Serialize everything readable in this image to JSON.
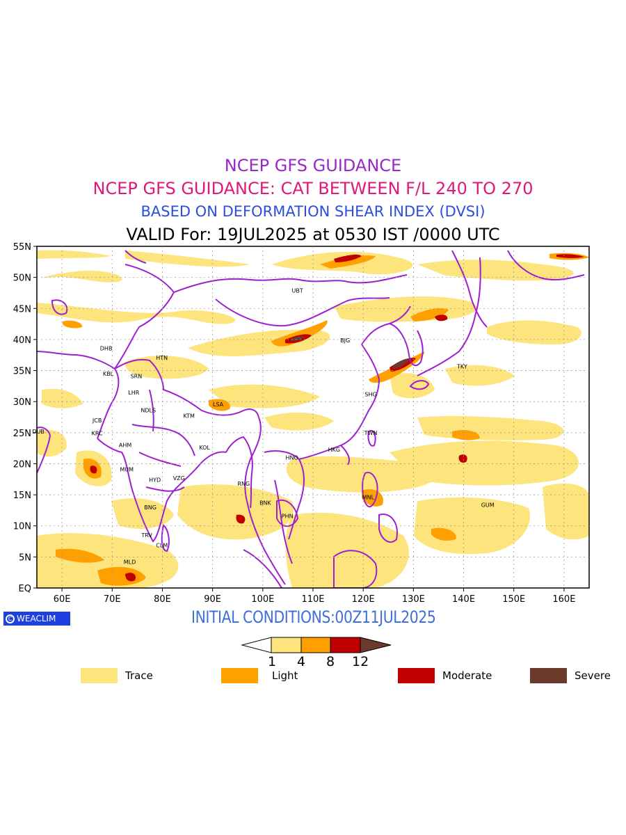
{
  "titles": {
    "line1": "NCEP GFS GUIDANCE",
    "line2": "NCEP GFS GUIDANCE: CAT BETWEEN F/L 240 TO 270",
    "line3": "BASED ON DEFORMATION SHEAR INDEX (DVSI)",
    "line4": "VALID For: 19JUL2025 at 0530 IST /0000 UTC"
  },
  "colors": {
    "line1": "#9a28c8",
    "line2": "#e0187a",
    "line3": "#2c4de0",
    "boundary": "#9e1fd0",
    "trace": "#fde47d",
    "light": "#ffa000",
    "moderate": "#c00000",
    "severe": "#6b3a2a"
  },
  "axes": {
    "lat_ticks": [
      "55N",
      "50N",
      "45N",
      "40N",
      "35N",
      "30N",
      "25N",
      "20N",
      "15N",
      "10N",
      "5N",
      "EQ"
    ],
    "lon_ticks": [
      "60E",
      "70E",
      "80E",
      "90E",
      "100E",
      "110E",
      "120E",
      "130E",
      "140E",
      "150E",
      "160E"
    ]
  },
  "stations": [
    {
      "code": "UBT",
      "lon": 106.9,
      "lat": 47.9
    },
    {
      "code": "BJG",
      "lon": 116.4,
      "lat": 39.9
    },
    {
      "code": "TKY",
      "lon": 139.7,
      "lat": 35.7
    },
    {
      "code": "SHG",
      "lon": 121.5,
      "lat": 31.2
    },
    {
      "code": "TWN",
      "lon": 121.5,
      "lat": 25.0
    },
    {
      "code": "HKG",
      "lon": 114.2,
      "lat": 22.3
    },
    {
      "code": "HNO",
      "lon": 105.8,
      "lat": 21.0
    },
    {
      "code": "MNL",
      "lon": 121.0,
      "lat": 14.6
    },
    {
      "code": "GUM",
      "lon": 144.8,
      "lat": 13.4
    },
    {
      "code": "BNK",
      "lon": 100.5,
      "lat": 13.7
    },
    {
      "code": "PHN",
      "lon": 104.9,
      "lat": 11.6
    },
    {
      "code": "RNG",
      "lon": 96.2,
      "lat": 16.8
    },
    {
      "code": "DHB",
      "lon": 68.8,
      "lat": 38.6
    },
    {
      "code": "HTN",
      "lon": 79.9,
      "lat": 37.1
    },
    {
      "code": "KBL",
      "lon": 69.2,
      "lat": 34.5
    },
    {
      "code": "SRN",
      "lon": 74.8,
      "lat": 34.1
    },
    {
      "code": "LHR",
      "lon": 74.3,
      "lat": 31.5
    },
    {
      "code": "LSA",
      "lon": 91.1,
      "lat": 29.6
    },
    {
      "code": "JCB",
      "lon": 67.0,
      "lat": 27.0
    },
    {
      "code": "NDLS",
      "lon": 77.2,
      "lat": 28.6
    },
    {
      "code": "KTM",
      "lon": 85.3,
      "lat": 27.7
    },
    {
      "code": "DUB",
      "lon": 55.3,
      "lat": 25.2
    },
    {
      "code": "KRC",
      "lon": 67.0,
      "lat": 24.9
    },
    {
      "code": "AHM",
      "lon": 72.6,
      "lat": 23.0
    },
    {
      "code": "KOL",
      "lon": 88.4,
      "lat": 22.6
    },
    {
      "code": "MUM",
      "lon": 72.9,
      "lat": 19.1
    },
    {
      "code": "HYD",
      "lon": 78.5,
      "lat": 17.4
    },
    {
      "code": "VZG",
      "lon": 83.3,
      "lat": 17.7
    },
    {
      "code": "BNG",
      "lon": 77.6,
      "lat": 13.0
    },
    {
      "code": "TRV",
      "lon": 76.9,
      "lat": 8.5
    },
    {
      "code": "CLM",
      "lon": 79.9,
      "lat": 6.9
    },
    {
      "code": "MLD",
      "lon": 73.5,
      "lat": 4.2
    }
  ],
  "logo": "WEACLIM",
  "initial_conditions": "INITIAL CONDITIONS:00Z11JUL2025",
  "colorbar": {
    "levels": [
      "1",
      "4",
      "8",
      "12"
    ],
    "fills": [
      "#fde47d",
      "#ffa000",
      "#c00000",
      "#6b3a2a"
    ]
  },
  "legend": [
    {
      "label": "Trace",
      "color": "#fde47d"
    },
    {
      "label": "Light",
      "color": "#ffa000"
    },
    {
      "label": "Moderate",
      "color": "#c00000"
    },
    {
      "label": "Severe",
      "color": "#6b3a2a"
    }
  ]
}
